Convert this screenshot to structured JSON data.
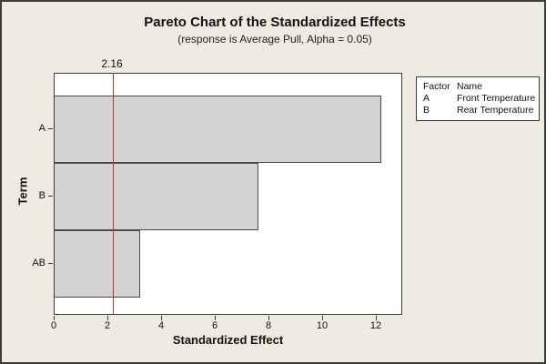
{
  "chart_data": {
    "type": "bar",
    "orientation": "horizontal",
    "title": "Pareto Chart of the Standardized Effects",
    "subtitle": "(response is Average Pull, Alpha = 0.05)",
    "xlabel": "Standardized Effect",
    "ylabel": "Term",
    "categories": [
      "A",
      "B",
      "AB"
    ],
    "values": [
      12.2,
      7.6,
      3.2
    ],
    "xlim": [
      0,
      13
    ],
    "xticks": [
      0,
      2,
      4,
      6,
      8,
      10,
      12
    ],
    "grid": false,
    "reference_line": {
      "value": 2.16,
      "label": "2.16",
      "color": "#B5342D"
    },
    "colors": {
      "background": "#EFEBE3",
      "plot_background": "#FFFFFF",
      "bar_fill": "#D3D3D3",
      "bar_border": "#4A4A4A",
      "axis_border": "#3A3A3A"
    },
    "legend_position": "top-right"
  },
  "legend": {
    "headers": {
      "factor": "Factor",
      "name": "Name"
    },
    "rows": [
      {
        "factor": "A",
        "name": "Front Temperature"
      },
      {
        "factor": "B",
        "name": "Rear Temperature"
      }
    ]
  }
}
